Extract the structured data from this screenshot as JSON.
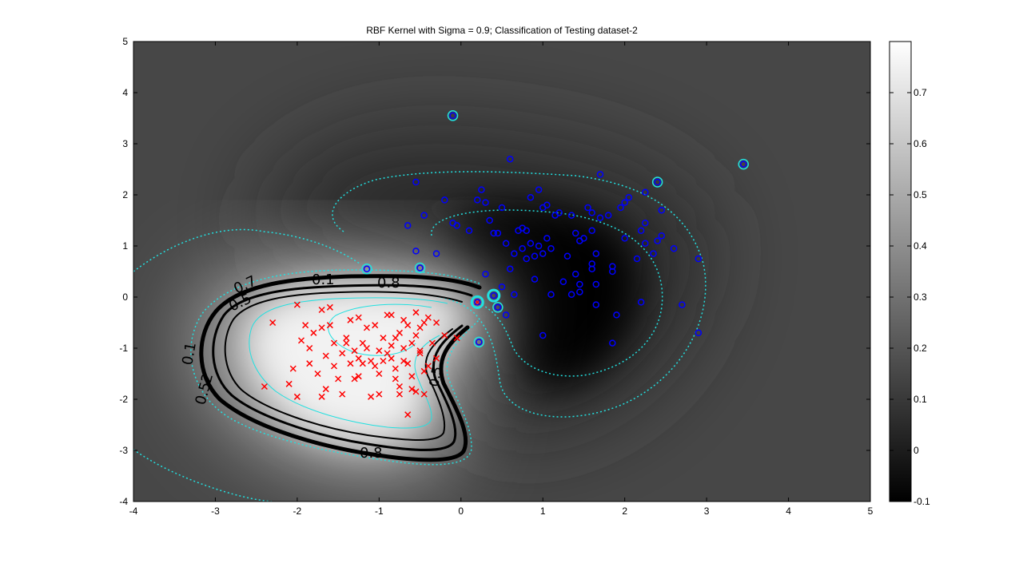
{
  "chart_data": {
    "type": "scatter",
    "title": "RBF Kernel with Sigma = 0.9; Classification of Testing dataset-2",
    "xlim": [
      -4,
      5
    ],
    "ylim": [
      -4,
      5
    ],
    "x_ticks": [
      "-4",
      "-3",
      "-2",
      "-1",
      "0",
      "1",
      "2",
      "3",
      "4",
      "5"
    ],
    "y_ticks": [
      "-4",
      "-3",
      "-2",
      "-1",
      "0",
      "1",
      "2",
      "3",
      "4",
      "5"
    ],
    "colorbar": {
      "range": [
        -0.1,
        0.8
      ],
      "ticks": [
        "-0.1",
        "0",
        "0.1",
        "0.2",
        "0.3",
        "0.4",
        "0.5",
        "0.6",
        "0.7"
      ],
      "colormap": "gray"
    },
    "contour_labels": [
      "0.1",
      "0.8",
      "0.7",
      "0.5",
      "0.1",
      "0.52",
      "0.8",
      "0.5"
    ],
    "series": [
      {
        "marker": "x",
        "color": "#ff0000",
        "points": [
          [
            -2.4,
            -1.75
          ],
          [
            -2.3,
            -0.5
          ],
          [
            -2.1,
            -1.7
          ],
          [
            -2.05,
            -1.4
          ],
          [
            -2.0,
            -0.15
          ],
          [
            -2.0,
            -1.95
          ],
          [
            -1.95,
            -0.85
          ],
          [
            -1.9,
            -0.55
          ],
          [
            -1.85,
            -1.3
          ],
          [
            -1.85,
            -1.0
          ],
          [
            -1.8,
            -0.7
          ],
          [
            -1.75,
            -1.5
          ],
          [
            -1.7,
            -0.6
          ],
          [
            -1.7,
            -1.95
          ],
          [
            -1.65,
            -1.15
          ],
          [
            -1.6,
            -0.55
          ],
          [
            -1.6,
            -0.2
          ],
          [
            -1.55,
            -0.9
          ],
          [
            -1.5,
            -1.6
          ],
          [
            -1.45,
            -1.9
          ],
          [
            -1.4,
            -0.8
          ],
          [
            -1.4,
            -0.9
          ],
          [
            -1.35,
            -1.3
          ],
          [
            -1.3,
            -1.05
          ],
          [
            -1.3,
            -1.6
          ],
          [
            -1.25,
            -0.4
          ],
          [
            -1.25,
            -1.2
          ],
          [
            -1.2,
            -1.3
          ],
          [
            -1.15,
            -0.6
          ],
          [
            -1.1,
            -1.95
          ],
          [
            -1.1,
            -1.25
          ],
          [
            -1.05,
            -1.35
          ],
          [
            -1.0,
            -1.5
          ],
          [
            -1.0,
            -1.9
          ],
          [
            -0.95,
            -0.8
          ],
          [
            -0.9,
            -1.1
          ],
          [
            -0.9,
            -0.35
          ],
          [
            -0.85,
            -0.95
          ],
          [
            -0.85,
            -1.2
          ],
          [
            -0.8,
            -1.4
          ],
          [
            -0.8,
            -1.6
          ],
          [
            -0.75,
            -0.7
          ],
          [
            -0.75,
            -1.75
          ],
          [
            -0.7,
            -1.0
          ],
          [
            -0.7,
            -0.45
          ],
          [
            -0.65,
            -1.3
          ],
          [
            -0.6,
            -1.55
          ],
          [
            -0.6,
            -0.9
          ],
          [
            -0.55,
            -0.3
          ],
          [
            -0.55,
            -1.85
          ],
          [
            -0.5,
            -1.1
          ],
          [
            -0.5,
            -0.6
          ],
          [
            -0.45,
            -1.45
          ],
          [
            -0.4,
            -1.35
          ],
          [
            -0.4,
            -0.4
          ],
          [
            -0.35,
            -0.9
          ],
          [
            -0.3,
            -1.2
          ],
          [
            -0.2,
            -0.75
          ],
          [
            -1.7,
            -0.25
          ],
          [
            -1.55,
            -1.35
          ],
          [
            -1.45,
            -1.1
          ],
          [
            -1.35,
            -0.45
          ],
          [
            -1.2,
            -0.9
          ],
          [
            -1.05,
            -0.55
          ],
          [
            -0.95,
            -1.25
          ],
          [
            -0.85,
            -0.35
          ],
          [
            -0.75,
            -1.9
          ],
          [
            -0.65,
            -0.55
          ],
          [
            -0.6,
            -1.8
          ],
          [
            -0.55,
            -0.75
          ],
          [
            -0.45,
            -1.9
          ],
          [
            -1.65,
            -1.8
          ],
          [
            -1.15,
            -1.0
          ],
          [
            -1.0,
            -1.05
          ],
          [
            -0.7,
            -1.25
          ],
          [
            -0.5,
            -1.05
          ],
          [
            -0.45,
            -0.5
          ],
          [
            -0.3,
            -0.5
          ],
          [
            -0.8,
            -0.8
          ],
          [
            -1.25,
            -1.55
          ],
          [
            -0.65,
            -2.3
          ],
          [
            -0.05,
            -0.8
          ],
          [
            0.2,
            -0.1
          ]
        ]
      },
      {
        "marker": "o",
        "color": "#0000ff",
        "points": [
          [
            -0.55,
            2.25
          ],
          [
            -0.45,
            1.6
          ],
          [
            -0.2,
            1.9
          ],
          [
            -0.1,
            1.45
          ],
          [
            -0.05,
            1.4
          ],
          [
            0.1,
            1.3
          ],
          [
            0.2,
            1.9
          ],
          [
            0.25,
            2.1
          ],
          [
            0.3,
            1.85
          ],
          [
            0.35,
            1.5
          ],
          [
            0.4,
            1.25
          ],
          [
            0.45,
            1.25
          ],
          [
            0.5,
            1.75
          ],
          [
            0.55,
            1.05
          ],
          [
            0.6,
            0.55
          ],
          [
            0.6,
            2.7
          ],
          [
            0.65,
            0.85
          ],
          [
            0.7,
            1.3
          ],
          [
            0.75,
            1.35
          ],
          [
            0.75,
            0.95
          ],
          [
            0.8,
            1.3
          ],
          [
            0.8,
            0.75
          ],
          [
            0.85,
            1.05
          ],
          [
            0.85,
            1.95
          ],
          [
            0.9,
            0.8
          ],
          [
            0.9,
            0.35
          ],
          [
            0.95,
            2.1
          ],
          [
            0.95,
            1.0
          ],
          [
            1.0,
            1.75
          ],
          [
            1.0,
            0.85
          ],
          [
            1.05,
            1.15
          ],
          [
            1.05,
            1.8
          ],
          [
            1.1,
            0.95
          ],
          [
            1.1,
            0.05
          ],
          [
            1.15,
            1.6
          ],
          [
            1.2,
            1.65
          ],
          [
            1.25,
            0.3
          ],
          [
            1.3,
            0.8
          ],
          [
            1.35,
            1.6
          ],
          [
            1.35,
            0.05
          ],
          [
            1.4,
            1.25
          ],
          [
            1.4,
            0.45
          ],
          [
            1.45,
            1.1
          ],
          [
            1.45,
            0.25
          ],
          [
            1.45,
            0.1
          ],
          [
            1.5,
            1.15
          ],
          [
            1.55,
            1.75
          ],
          [
            1.6,
            1.65
          ],
          [
            1.6,
            1.3
          ],
          [
            1.6,
            0.65
          ],
          [
            1.6,
            0.55
          ],
          [
            1.65,
            0.85
          ],
          [
            1.65,
            0.25
          ],
          [
            1.65,
            -0.15
          ],
          [
            1.7,
            1.55
          ],
          [
            1.7,
            2.4
          ],
          [
            1.8,
            1.6
          ],
          [
            1.85,
            0.6
          ],
          [
            1.85,
            0.5
          ],
          [
            1.9,
            -0.35
          ],
          [
            1.95,
            1.75
          ],
          [
            2.0,
            1.15
          ],
          [
            2.0,
            1.85
          ],
          [
            2.05,
            1.95
          ],
          [
            2.15,
            0.75
          ],
          [
            2.2,
            1.3
          ],
          [
            2.2,
            -0.1
          ],
          [
            2.25,
            2.05
          ],
          [
            2.25,
            1.45
          ],
          [
            2.25,
            1.05
          ],
          [
            2.35,
            0.85
          ],
          [
            2.4,
            1.1
          ],
          [
            2.45,
            1.7
          ],
          [
            2.45,
            1.2
          ],
          [
            2.6,
            0.95
          ],
          [
            2.7,
            -0.15
          ],
          [
            2.9,
            0.75
          ],
          [
            2.9,
            -0.7
          ],
          [
            1.85,
            -0.9
          ],
          [
            1.0,
            -0.75
          ],
          [
            0.55,
            -0.35
          ],
          [
            0.45,
            -0.2
          ],
          [
            0.5,
            0.2
          ],
          [
            0.3,
            0.45
          ],
          [
            0.65,
            0.05
          ],
          [
            -0.55,
            0.9
          ],
          [
            -0.3,
            0.85
          ],
          [
            -0.65,
            1.4
          ]
        ]
      }
    ],
    "support_vectors": [
      [
        -0.1,
        3.55
      ],
      [
        3.45,
        2.6
      ],
      [
        2.4,
        2.25
      ],
      [
        -1.15,
        0.55
      ],
      [
        -0.5,
        0.57
      ],
      [
        0.2,
        -0.1
      ],
      [
        0.4,
        0.03
      ],
      [
        0.45,
        -0.2
      ],
      [
        0.22,
        -0.88
      ]
    ]
  }
}
